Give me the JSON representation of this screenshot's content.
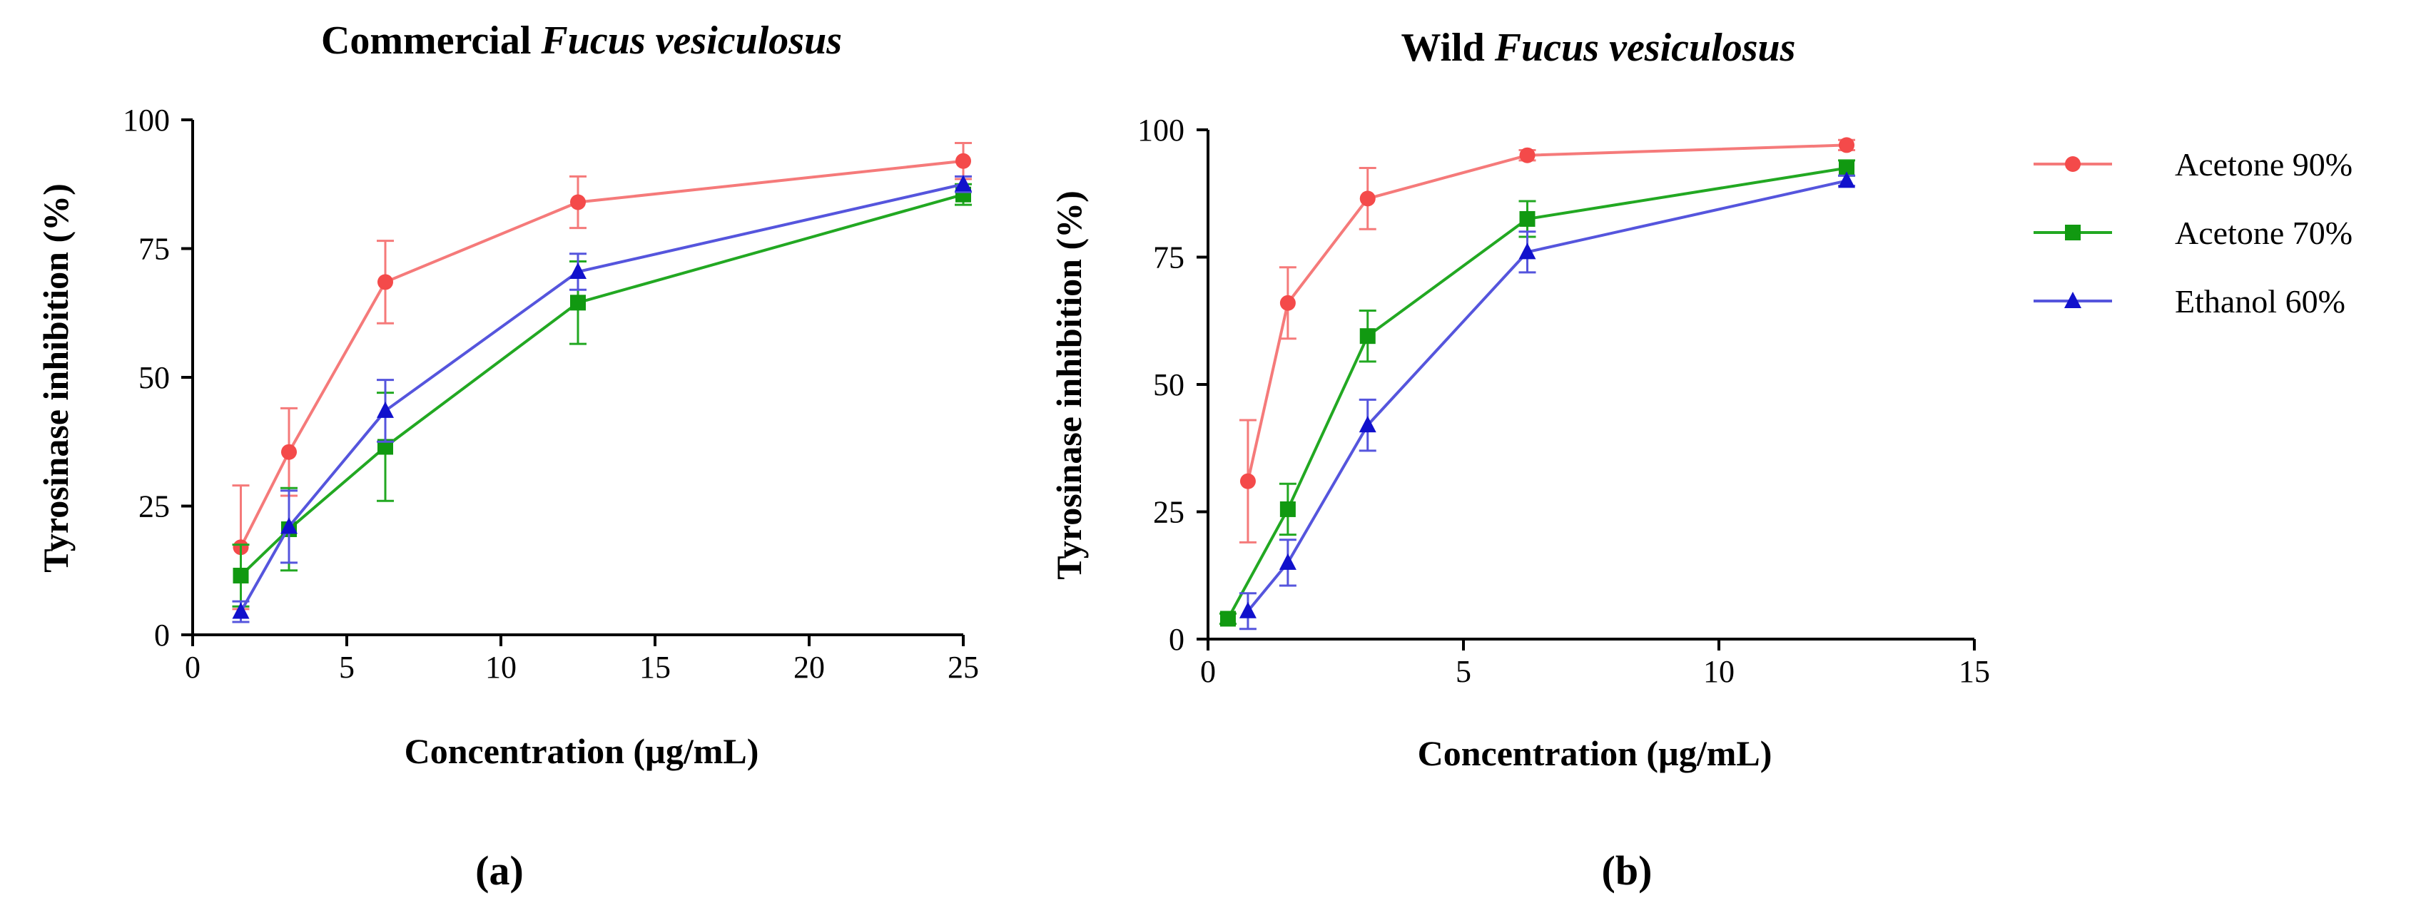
{
  "figure": {
    "legend": [
      {
        "name": "Acetone 90%",
        "color": "#f44a4a",
        "marker": "circle"
      },
      {
        "name": "Acetone 70%",
        "color": "#119911",
        "marker": "square"
      },
      {
        "name": "Ethanol 60%",
        "color": "#1111cc",
        "marker": "triangle"
      }
    ],
    "series_colors": {
      "line_red": "#f57a7a",
      "line_green": "#22a822",
      "line_blue": "#5555dd"
    }
  },
  "chart_data": [
    {
      "type": "line",
      "panel_label": "(a)",
      "title_prefix": "Commercial ",
      "title_italic": "Fucus vesiculosus",
      "xlabel": "Concentration (µg/mL)",
      "ylabel": "Tyrosinase inhibition (%)",
      "xlim": [
        0,
        25
      ],
      "ylim": [
        0,
        100
      ],
      "xticks": [
        0,
        5,
        10,
        15,
        20,
        25
      ],
      "yticks": [
        0,
        25,
        50,
        75,
        100
      ],
      "series": [
        {
          "name": "Acetone 90%",
          "x": [
            1.5625,
            3.125,
            6.25,
            12.5,
            25
          ],
          "y": [
            17,
            35.5,
            68.5,
            84,
            92
          ],
          "err": [
            12,
            8.5,
            8,
            5,
            3.5
          ]
        },
        {
          "name": "Acetone 70%",
          "x": [
            1.5625,
            3.125,
            6.25,
            12.5,
            25
          ],
          "y": [
            11.5,
            20.5,
            36.5,
            64.5,
            85.5
          ],
          "err": [
            6,
            8,
            10.5,
            8,
            2
          ]
        },
        {
          "name": "Ethanol 60%",
          "x": [
            1.5625,
            3.125,
            6.25,
            12.5,
            25
          ],
          "y": [
            4.5,
            21,
            43.5,
            70.5,
            87.5
          ],
          "err": [
            2,
            7,
            6,
            3.5,
            1.5
          ]
        }
      ]
    },
    {
      "type": "line",
      "panel_label": "(b)",
      "title_prefix": "Wild ",
      "title_italic": "Fucus vesiculosus",
      "xlabel": "Concentration (µg/mL)",
      "ylabel": "Tyrosinase inhibition (%)",
      "xlim": [
        0,
        15
      ],
      "ylim": [
        0,
        100
      ],
      "xticks": [
        0,
        5,
        10,
        15
      ],
      "yticks": [
        0,
        25,
        50,
        75,
        100
      ],
      "series": [
        {
          "name": "Acetone 90%",
          "x": [
            0.78125,
            1.5625,
            3.125,
            6.25,
            12.5
          ],
          "y": [
            31,
            66,
            86.5,
            95,
            97
          ],
          "err": [
            12,
            7,
            6,
            1,
            1
          ]
        },
        {
          "name": "Acetone 70%",
          "x": [
            0.390625,
            1.5625,
            3.125,
            6.25,
            12.5
          ],
          "y": [
            4,
            25.5,
            59.5,
            82.5,
            92.5
          ],
          "err": [
            1,
            5,
            5,
            3.5,
            1.5
          ]
        },
        {
          "name": "Ethanol 60%",
          "x": [
            0.78125,
            1.5625,
            3.125,
            6.25,
            12.5
          ],
          "y": [
            5.5,
            15,
            42,
            76,
            90
          ],
          "err": [
            3.5,
            4.5,
            5,
            4,
            1
          ]
        }
      ]
    }
  ]
}
